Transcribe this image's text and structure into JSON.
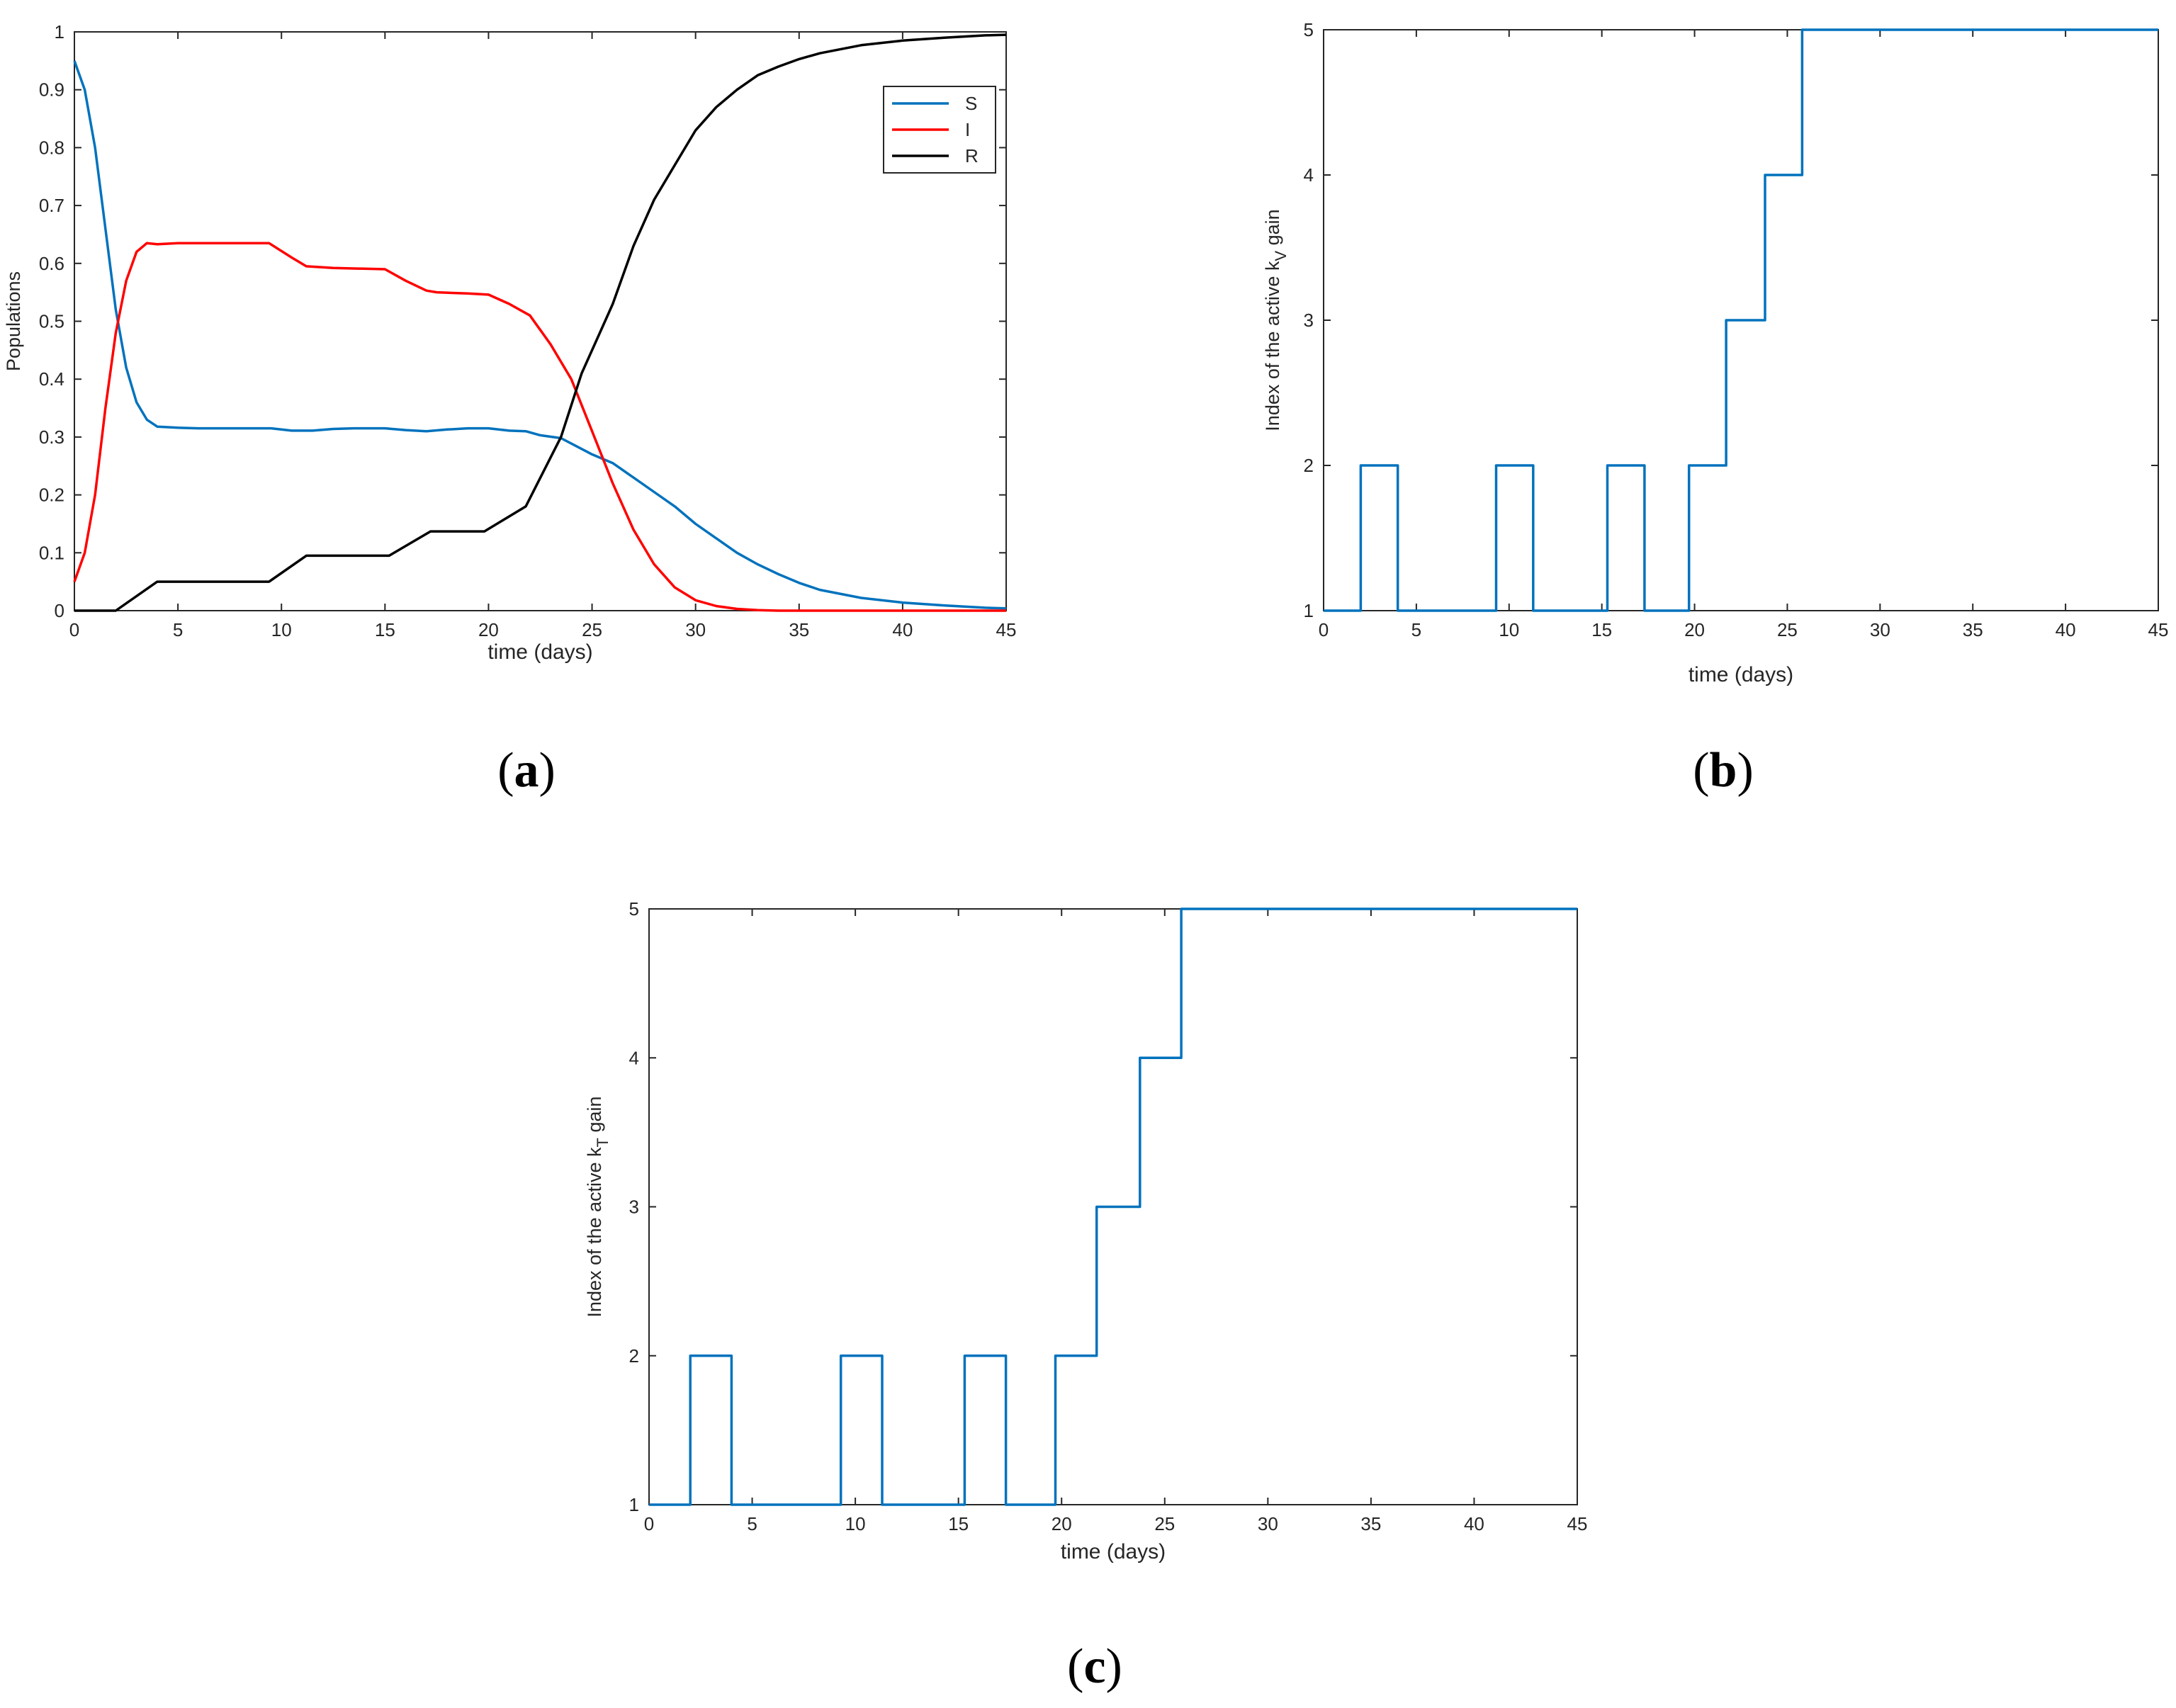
{
  "chart_data": [
    {
      "id": "a",
      "type": "line",
      "panel_label": "a",
      "xlabel": "time (days)",
      "ylabel": "Populations",
      "xlim": [
        0,
        45
      ],
      "ylim": [
        0,
        1
      ],
      "xticks": [
        0,
        5,
        10,
        15,
        20,
        25,
        30,
        35,
        40,
        45
      ],
      "yticks": [
        0,
        0.1,
        0.2,
        0.3,
        0.4,
        0.5,
        0.6,
        0.7,
        0.8,
        0.9,
        1
      ],
      "legend_position": "top-right",
      "series": [
        {
          "name": "S",
          "color": "#0072BD",
          "x": [
            0,
            0.5,
            1,
            1.5,
            2,
            2.5,
            3,
            3.5,
            4,
            5,
            6,
            8,
            9.5,
            10.5,
            11.5,
            12.5,
            13.5,
            15,
            16,
            17,
            18,
            19,
            20,
            21,
            21.8,
            22.5,
            23.5,
            24.2,
            25,
            26,
            27,
            28,
            29,
            30,
            31,
            32,
            33,
            34,
            35,
            36,
            38,
            40,
            42,
            44,
            45
          ],
          "y": [
            0.95,
            0.9,
            0.8,
            0.66,
            0.52,
            0.42,
            0.36,
            0.33,
            0.318,
            0.316,
            0.315,
            0.315,
            0.315,
            0.311,
            0.311,
            0.314,
            0.315,
            0.315,
            0.312,
            0.31,
            0.313,
            0.315,
            0.315,
            0.311,
            0.31,
            0.303,
            0.298,
            0.285,
            0.27,
            0.255,
            0.23,
            0.205,
            0.18,
            0.15,
            0.125,
            0.1,
            0.08,
            0.063,
            0.048,
            0.036,
            0.022,
            0.014,
            0.009,
            0.005,
            0.004
          ]
        },
        {
          "name": "I",
          "color": "#FF0000",
          "x": [
            0,
            0.5,
            1,
            1.5,
            2,
            2.5,
            3,
            3.5,
            4,
            5,
            6,
            8,
            9.4,
            10.5,
            11.2,
            12.5,
            15,
            16,
            17,
            17.5,
            19,
            20,
            21,
            22,
            23,
            24,
            25,
            26,
            27,
            28,
            29,
            30,
            31,
            32,
            33,
            34,
            35,
            37,
            40,
            45
          ],
          "y": [
            0.05,
            0.1,
            0.2,
            0.35,
            0.48,
            0.57,
            0.62,
            0.635,
            0.633,
            0.635,
            0.635,
            0.635,
            0.635,
            0.61,
            0.595,
            0.592,
            0.59,
            0.57,
            0.553,
            0.55,
            0.548,
            0.546,
            0.53,
            0.51,
            0.46,
            0.4,
            0.31,
            0.22,
            0.14,
            0.08,
            0.04,
            0.018,
            0.008,
            0.003,
            0.001,
            0,
            0,
            0,
            0,
            0
          ]
        },
        {
          "name": "R",
          "color": "#000000",
          "x": [
            0,
            2,
            4,
            9.4,
            11.2,
            15.2,
            17.2,
            19.8,
            21.8,
            23.5,
            24.5,
            25.5,
            26,
            27,
            28,
            29,
            30,
            31,
            32,
            33,
            34,
            35,
            36,
            38,
            40,
            42,
            44,
            45
          ],
          "y": [
            0,
            0,
            0.05,
            0.05,
            0.095,
            0.095,
            0.137,
            0.137,
            0.18,
            0.3,
            0.41,
            0.49,
            0.53,
            0.63,
            0.71,
            0.77,
            0.83,
            0.87,
            0.9,
            0.925,
            0.94,
            0.953,
            0.963,
            0.977,
            0.985,
            0.99,
            0.994,
            0.995
          ]
        }
      ]
    },
    {
      "id": "b",
      "type": "line",
      "step": true,
      "panel_label": "b",
      "xlabel": "time (days)",
      "ylabel_parts": [
        "Index of the active k",
        "V",
        " gain"
      ],
      "xlim": [
        0,
        45
      ],
      "ylim": [
        1,
        5
      ],
      "xticks": [
        0,
        5,
        10,
        15,
        20,
        25,
        30,
        35,
        40,
        45
      ],
      "yticks": [
        1,
        2,
        3,
        4,
        5
      ],
      "series": [
        {
          "name": "active gain index",
          "color": "#0072BD",
          "x": [
            0,
            2,
            2,
            4,
            4,
            9.3,
            9.3,
            11.3,
            11.3,
            15.3,
            15.3,
            17.3,
            17.3,
            19.7,
            19.7,
            21.7,
            21.7,
            23.8,
            23.8,
            25.8,
            25.8,
            45
          ],
          "y": [
            1,
            1,
            2,
            2,
            1,
            1,
            2,
            2,
            1,
            1,
            2,
            2,
            1,
            1,
            2,
            2,
            3,
            3,
            4,
            4,
            5,
            5
          ]
        }
      ]
    },
    {
      "id": "c",
      "type": "line",
      "step": true,
      "panel_label": "c",
      "xlabel": "time (days)",
      "ylabel_parts": [
        "Index of the active k",
        "T",
        " gain"
      ],
      "xlim": [
        0,
        45
      ],
      "ylim": [
        1,
        5
      ],
      "xticks": [
        0,
        5,
        10,
        15,
        20,
        25,
        30,
        35,
        40,
        45
      ],
      "yticks": [
        1,
        2,
        3,
        4,
        5
      ],
      "series": [
        {
          "name": "active gain index",
          "color": "#0072BD",
          "x": [
            0,
            2,
            2,
            4,
            4,
            9.3,
            9.3,
            11.3,
            11.3,
            15.3,
            15.3,
            17.3,
            17.3,
            19.7,
            19.7,
            21.7,
            21.7,
            23.8,
            23.8,
            25.8,
            25.8,
            45
          ],
          "y": [
            1,
            1,
            2,
            2,
            1,
            1,
            2,
            2,
            1,
            1,
            2,
            2,
            1,
            1,
            2,
            2,
            3,
            3,
            4,
            4,
            5,
            5
          ]
        }
      ]
    }
  ]
}
